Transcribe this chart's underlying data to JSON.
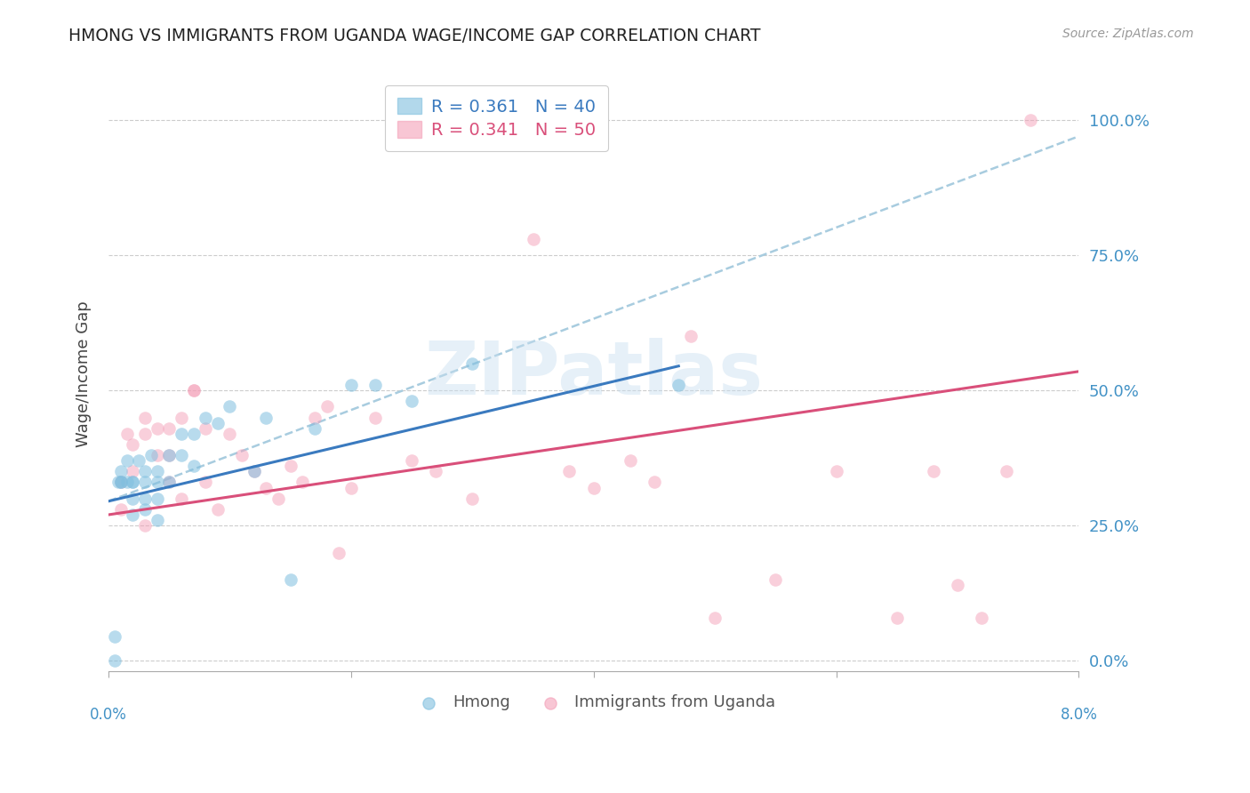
{
  "title": "HMONG VS IMMIGRANTS FROM UGANDA WAGE/INCOME GAP CORRELATION CHART",
  "source": "Source: ZipAtlas.com",
  "ylabel": "Wage/Income Gap",
  "ytick_labels": [
    "0.0%",
    "25.0%",
    "50.0%",
    "75.0%",
    "100.0%"
  ],
  "ytick_values": [
    0.0,
    0.25,
    0.5,
    0.75,
    1.0
  ],
  "xlim": [
    0.0,
    0.08
  ],
  "ylim": [
    -0.02,
    1.08
  ],
  "legend_line1": "R = 0.361   N = 40",
  "legend_line2": "R = 0.341   N = 50",
  "hmong_color": "#7fbfdf",
  "uganda_color": "#f4a0b8",
  "hmong_line_color": "#3a7abf",
  "uganda_line_color": "#d94f7a",
  "dashed_line_color": "#a8ccdf",
  "watermark_text": "ZIPatlas",
  "hmong_scatter_x": [
    0.0005,
    0.0005,
    0.0008,
    0.001,
    0.001,
    0.001,
    0.0015,
    0.0015,
    0.002,
    0.002,
    0.002,
    0.002,
    0.0025,
    0.003,
    0.003,
    0.003,
    0.003,
    0.0035,
    0.004,
    0.004,
    0.004,
    0.004,
    0.005,
    0.005,
    0.006,
    0.006,
    0.007,
    0.007,
    0.008,
    0.009,
    0.01,
    0.012,
    0.013,
    0.015,
    0.017,
    0.02,
    0.022,
    0.025,
    0.03,
    0.047
  ],
  "hmong_scatter_y": [
    0.0,
    0.045,
    0.33,
    0.33,
    0.33,
    0.35,
    0.33,
    0.37,
    0.33,
    0.33,
    0.3,
    0.27,
    0.37,
    0.35,
    0.33,
    0.3,
    0.28,
    0.38,
    0.35,
    0.33,
    0.3,
    0.26,
    0.38,
    0.33,
    0.42,
    0.38,
    0.42,
    0.36,
    0.45,
    0.44,
    0.47,
    0.35,
    0.45,
    0.15,
    0.43,
    0.51,
    0.51,
    0.48,
    0.55,
    0.51
  ],
  "uganda_scatter_x": [
    0.001,
    0.001,
    0.0015,
    0.002,
    0.002,
    0.003,
    0.003,
    0.003,
    0.004,
    0.004,
    0.005,
    0.005,
    0.005,
    0.006,
    0.006,
    0.007,
    0.007,
    0.008,
    0.008,
    0.009,
    0.01,
    0.011,
    0.012,
    0.013,
    0.014,
    0.015,
    0.016,
    0.017,
    0.018,
    0.019,
    0.02,
    0.022,
    0.025,
    0.027,
    0.03,
    0.035,
    0.038,
    0.04,
    0.043,
    0.045,
    0.048,
    0.05,
    0.055,
    0.06,
    0.065,
    0.068,
    0.07,
    0.072,
    0.074,
    0.076
  ],
  "uganda_scatter_y": [
    0.33,
    0.28,
    0.42,
    0.4,
    0.35,
    0.42,
    0.25,
    0.45,
    0.38,
    0.43,
    0.43,
    0.38,
    0.33,
    0.45,
    0.3,
    0.5,
    0.5,
    0.43,
    0.33,
    0.28,
    0.42,
    0.38,
    0.35,
    0.32,
    0.3,
    0.36,
    0.33,
    0.45,
    0.47,
    0.2,
    0.32,
    0.45,
    0.37,
    0.35,
    0.3,
    0.78,
    0.35,
    0.32,
    0.37,
    0.33,
    0.6,
    0.08,
    0.15,
    0.35,
    0.08,
    0.35,
    0.14,
    0.08,
    0.35,
    1.0
  ],
  "hmong_line_x0": 0.0,
  "hmong_line_x1": 0.047,
  "hmong_line_y0": 0.295,
  "hmong_line_y1": 0.545,
  "dashed_line_x0": 0.0,
  "dashed_line_x1": 0.08,
  "dashed_line_y0": 0.295,
  "dashed_line_y1": 0.97,
  "uganda_line_x0": 0.0,
  "uganda_line_x1": 0.08,
  "uganda_line_y0": 0.27,
  "uganda_line_y1": 0.535
}
